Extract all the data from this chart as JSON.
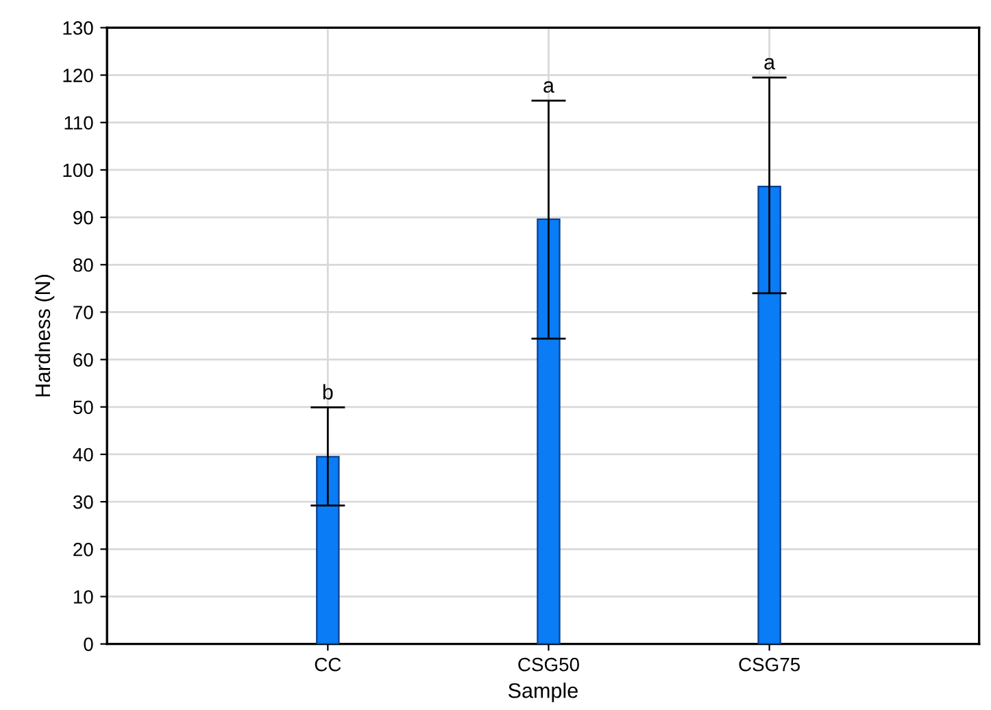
{
  "chart_data": {
    "type": "bar",
    "xlabel": "Sample",
    "ylabel": "Hardness (N)",
    "categories": [
      "CC",
      "CSG50",
      "CSG75"
    ],
    "values": [
      39.5,
      89.6,
      96.5
    ],
    "errors": [
      [
        29.2,
        49.9
      ],
      [
        64.4,
        114.6
      ],
      [
        74.0,
        119.5
      ]
    ],
    "color": "#0a7cf5",
    "ylim": [
      0,
      130
    ],
    "yticks": [
      0,
      10,
      20,
      30,
      40,
      50,
      60,
      70,
      80,
      90,
      100,
      110,
      120,
      130
    ],
    "grid": true,
    "annotations": [
      {
        "text": "b",
        "x": "CC",
        "y": 49.9
      },
      {
        "text": "a",
        "x": "CSG50",
        "y": 114.6
      },
      {
        "text": "a",
        "x": "CSG75",
        "y": 119.5
      }
    ]
  }
}
